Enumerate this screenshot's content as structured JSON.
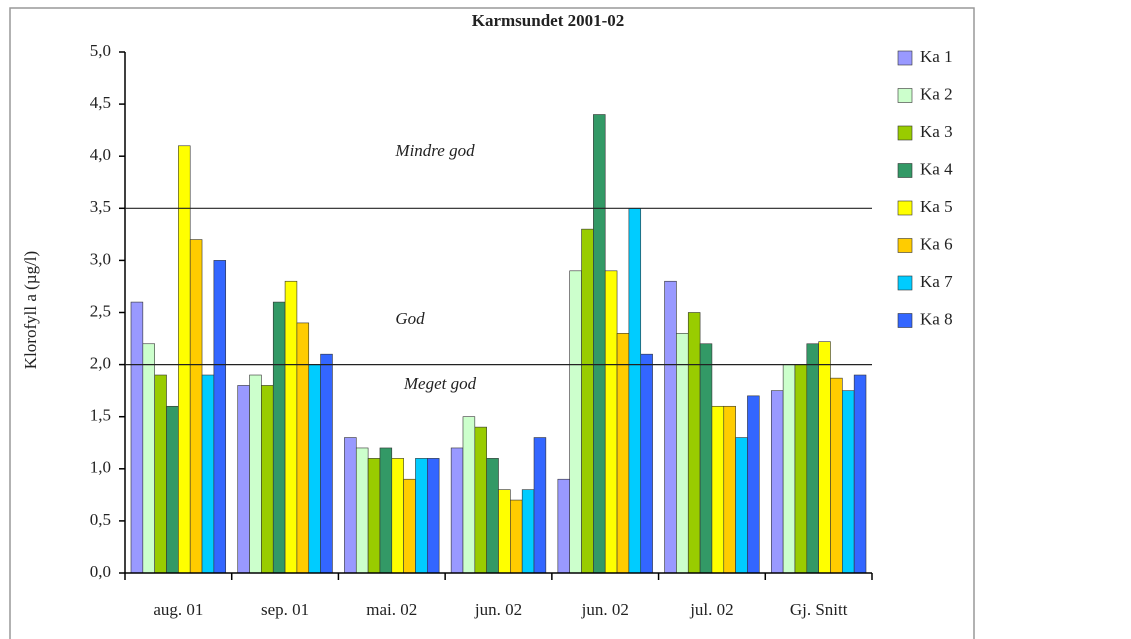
{
  "chart_data": {
    "type": "bar",
    "title": "Karmsundet 2001-02",
    "y_label": "Klorofyll a (µg/l)",
    "categories": [
      "aug. 01",
      "sep. 01",
      "mai. 02",
      "jun. 02",
      "jun. 02",
      "jul. 02",
      "Gj. Snitt"
    ],
    "series": [
      {
        "name": "Ka 1",
        "color": "#9999ff",
        "values": [
          2.6,
          1.8,
          1.3,
          1.2,
          0.9,
          2.8,
          1.75
        ]
      },
      {
        "name": "Ka 2",
        "color": "#ccffcc",
        "values": [
          2.2,
          1.9,
          1.2,
          1.5,
          2.9,
          2.3,
          2.0
        ]
      },
      {
        "name": "Ka 3",
        "color": "#99cc00",
        "values": [
          1.9,
          1.8,
          1.1,
          1.4,
          3.3,
          2.5,
          2.0
        ]
      },
      {
        "name": "Ka 4",
        "color": "#339966",
        "values": [
          1.6,
          2.6,
          1.2,
          1.1,
          4.4,
          2.2,
          2.2
        ]
      },
      {
        "name": "Ka 5",
        "color": "#ffff00",
        "values": [
          4.1,
          2.8,
          1.1,
          0.8,
          2.9,
          1.6,
          2.22
        ]
      },
      {
        "name": "Ka 6",
        "color": "#ffcc00",
        "values": [
          3.2,
          2.4,
          0.9,
          0.7,
          2.3,
          1.6,
          1.87
        ]
      },
      {
        "name": "Ka 7",
        "color": "#00ccff",
        "values": [
          1.9,
          2.0,
          1.1,
          0.8,
          3.5,
          1.3,
          1.75
        ]
      },
      {
        "name": "Ka 8",
        "color": "#3366ff",
        "values": [
          3.0,
          2.1,
          1.1,
          1.3,
          2.1,
          1.7,
          1.9
        ]
      }
    ],
    "ylim": [
      0,
      5
    ],
    "yticks": [
      {
        "value": 0,
        "label": "0,0"
      },
      {
        "value": 0.5,
        "label": "0,5"
      },
      {
        "value": 1,
        "label": "1,0"
      },
      {
        "value": 1.5,
        "label": "1,5"
      },
      {
        "value": 2,
        "label": "2,0"
      },
      {
        "value": 2.5,
        "label": "2,5"
      },
      {
        "value": 3,
        "label": "3,0"
      },
      {
        "value": 3.5,
        "label": "3,5"
      },
      {
        "value": 4,
        "label": "4,0"
      },
      {
        "value": 4.5,
        "label": "4,5"
      },
      {
        "value": 5,
        "label": "5,0"
      }
    ],
    "reference_lines": [
      3.5,
      2.0
    ],
    "annotations": [
      "Mindre god",
      "God",
      "Meget god"
    ],
    "legend": "right"
  }
}
